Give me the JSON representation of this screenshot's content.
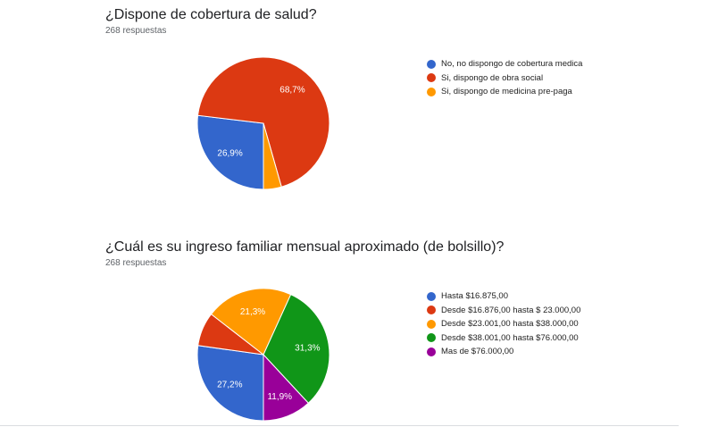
{
  "chart_data": [
    {
      "type": "pie",
      "title": "¿Dispone de cobertura de salud?",
      "subtitle": "268 respuestas",
      "legend_position": "right",
      "start_angle_deg": 90,
      "slices": [
        {
          "label": "No, no dispongo de cobertura medica",
          "value": 26.9,
          "display": "26,9%",
          "color": "#3366cc"
        },
        {
          "label": "Si, dispongo de obra social",
          "value": 68.7,
          "display": "68,7%",
          "color": "#dc3912"
        },
        {
          "label": "Si, dispongo de medicina pre-paga",
          "value": 4.4,
          "display": "",
          "color": "#ff9900"
        }
      ]
    },
    {
      "type": "pie",
      "title": "¿Cuál es su ingreso familiar mensual aproximado (de bolsillo)?",
      "subtitle": "268 respuestas",
      "legend_position": "right",
      "start_angle_deg": 90,
      "slices": [
        {
          "label": "Hasta $16.875,00",
          "value": 27.2,
          "display": "27,2%",
          "color": "#3366cc"
        },
        {
          "label": "Desde $16.876,00 hasta $ 23.000,00",
          "value": 8.3,
          "display": "",
          "color": "#dc3912"
        },
        {
          "label": "Desde $23.001,00 hasta $38.000,00",
          "value": 21.3,
          "display": "21,3%",
          "color": "#ff9900"
        },
        {
          "label": "Desde $38.001,00 hasta $76.000,00",
          "value": 31.3,
          "display": "31,3%",
          "color": "#109618"
        },
        {
          "label": "Mas de $76.000,00",
          "value": 11.9,
          "display": "11,9%",
          "color": "#990099"
        }
      ]
    }
  ]
}
